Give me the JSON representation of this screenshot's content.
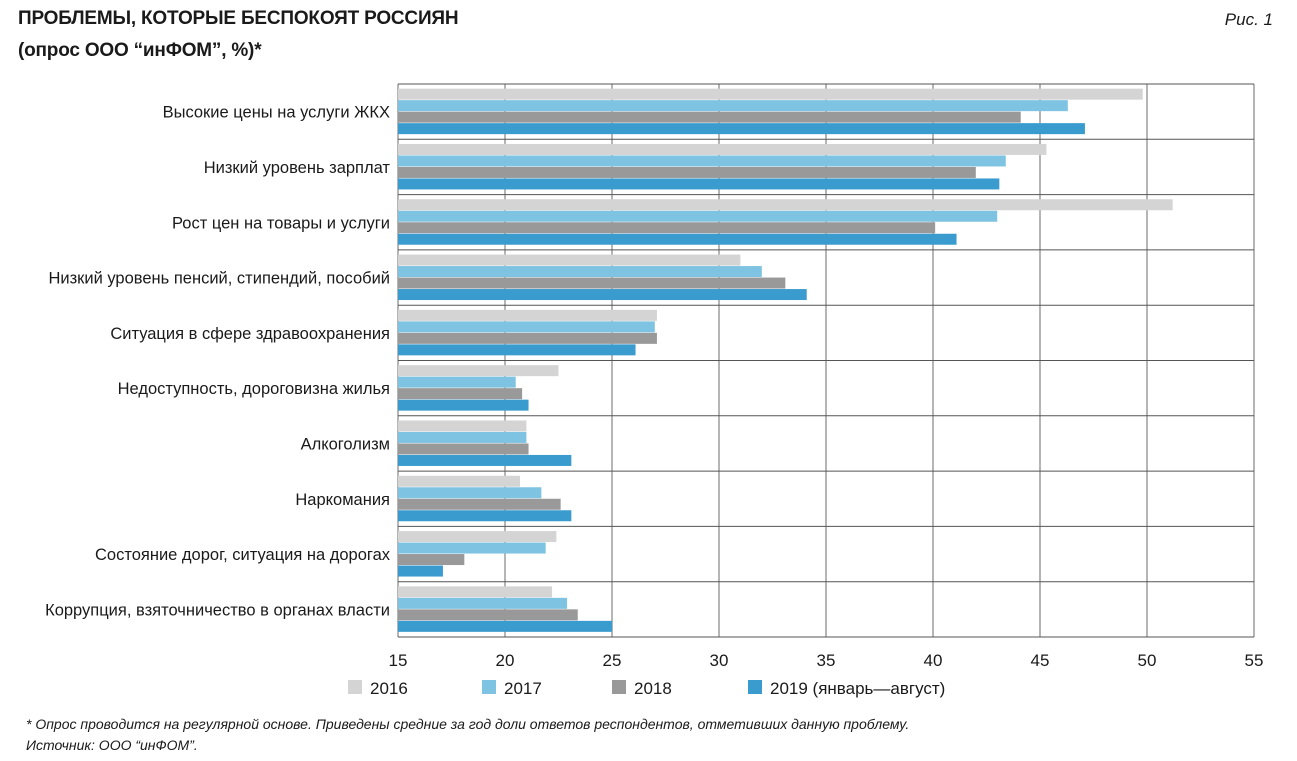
{
  "header": {
    "title": "ПРОБЛЕМЫ, КОТОРЫЕ БЕСПОКОЯТ РОССИЯН",
    "subtitle": "(опрос ООО “инФОМ”, %)*",
    "figure_label": "Рис. 1"
  },
  "footnotes": {
    "note": "* Опрос проводится на регулярной основе. Приведены средние за год доли ответов респондентов, отметивших данную проблему.",
    "source": "Источник: ООО “инФОМ”."
  },
  "chart_data": {
    "type": "bar",
    "orientation": "horizontal",
    "title": "ПРОБЛЕМЫ, КОТОРЫЕ БЕСПОКОЯТ РОССИЯН",
    "subtitle": "(опрос ООО “инФОМ”, %)*",
    "xlim": [
      15,
      55
    ],
    "x_ticks": [
      15,
      20,
      25,
      30,
      35,
      40,
      45,
      50,
      55
    ],
    "grid": "vertical lines at each tick, horizontal separators between categories",
    "legend_position": "bottom",
    "categories": [
      "Высокие цены на услуги ЖКХ",
      "Низкий уровень зарплат",
      "Рост цен на товары и услуги",
      "Низкий уровень пенсий, стипендий, пособий",
      "Ситуация в сфере здравоохранения",
      "Недоступность, дороговизна жилья",
      "Алкоголизм",
      "Наркомания",
      "Состояние дорог, ситуация на дорогах",
      "Коррупция, взяточничество в органах власти"
    ],
    "series": [
      {
        "name": "2016",
        "color": "#d4d4d4",
        "values": [
          49.8,
          45.3,
          51.2,
          31.0,
          27.1,
          22.5,
          21.0,
          20.7,
          22.4,
          22.2
        ]
      },
      {
        "name": "2017",
        "color": "#7fc3e2",
        "values": [
          46.3,
          43.4,
          43.0,
          32.0,
          27.0,
          20.5,
          21.0,
          21.7,
          21.9,
          22.9
        ]
      },
      {
        "name": "2018",
        "color": "#999999",
        "values": [
          44.1,
          42.0,
          40.1,
          33.1,
          27.1,
          20.8,
          21.1,
          22.6,
          18.1,
          23.4
        ]
      },
      {
        "name": "2019 (январь—август)",
        "color": "#3a9cce",
        "values": [
          47.1,
          43.1,
          41.1,
          34.1,
          26.1,
          21.1,
          23.1,
          23.1,
          17.1,
          25.0
        ]
      }
    ]
  }
}
